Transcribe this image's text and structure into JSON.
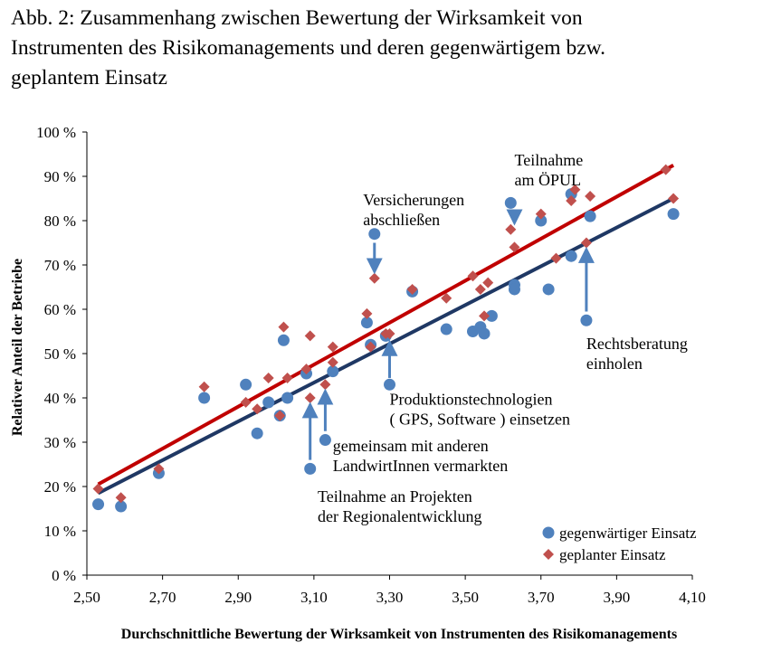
{
  "title_lines": [
    "Abb. 2: Zusammenhang zwischen Bewertung der Wirksamkeit von",
    "Instrumenten des Risikomanagements und deren gegenwärtigem bzw.",
    "geplantem Einsatz"
  ],
  "colors": {
    "current": "#4f81bd",
    "planned": "#c0504d",
    "current_trend": "#1f3864",
    "planned_trend": "#c00000",
    "arrow": "#4f81bd",
    "axis": "#000000"
  },
  "chart_data": {
    "type": "scatter",
    "title": "Abb. 2: Zusammenhang zwischen Bewertung der Wirksamkeit von Instrumenten des Risikomanagements und deren gegenwärtigem bzw. geplantem Einsatz",
    "xlabel": "Durchschnittliche Bewertung der Wirksamkeit von Instrumenten des Risikomanagements",
    "ylabel": "Relativer Anteil der Betriebe",
    "xlim": [
      2.5,
      4.1
    ],
    "ylim": [
      0,
      100
    ],
    "x_ticks": [
      "2,50",
      "2,70",
      "2,90",
      "3,10",
      "3,30",
      "3,50",
      "3,70",
      "3,90",
      "4,10"
    ],
    "y_ticks": [
      "0 %",
      "10 %",
      "20 %",
      "30 %",
      "40 %",
      "50 %",
      "60 %",
      "70 %",
      "80 %",
      "90 %",
      "100 %"
    ],
    "grid": false,
    "legend_position": "bottom-right",
    "series": [
      {
        "name": "gegenwärtiger Einsatz",
        "marker": "circle",
        "points": [
          [
            2.53,
            16
          ],
          [
            2.59,
            15.5
          ],
          [
            2.69,
            23
          ],
          [
            2.81,
            40
          ],
          [
            2.92,
            43
          ],
          [
            2.95,
            32
          ],
          [
            2.98,
            39
          ],
          [
            3.01,
            36
          ],
          [
            3.02,
            53
          ],
          [
            3.03,
            40
          ],
          [
            3.08,
            45.5
          ],
          [
            3.09,
            24
          ],
          [
            3.13,
            30.5
          ],
          [
            3.15,
            46
          ],
          [
            3.24,
            57
          ],
          [
            3.25,
            52
          ],
          [
            3.29,
            54
          ],
          [
            3.3,
            43
          ],
          [
            3.26,
            77
          ],
          [
            3.36,
            64
          ],
          [
            3.45,
            55.5
          ],
          [
            3.52,
            55
          ],
          [
            3.54,
            56
          ],
          [
            3.55,
            54.5
          ],
          [
            3.57,
            58.5
          ],
          [
            3.62,
            84
          ],
          [
            3.63,
            65.5
          ],
          [
            3.63,
            64.5
          ],
          [
            3.7,
            80
          ],
          [
            3.72,
            64.5
          ],
          [
            3.78,
            72
          ],
          [
            3.78,
            86
          ],
          [
            3.83,
            81
          ],
          [
            3.82,
            57.5
          ],
          [
            4.05,
            81.5
          ]
        ]
      },
      {
        "name": "geplanter Einsatz",
        "marker": "diamond",
        "points": [
          [
            2.53,
            19.5
          ],
          [
            2.59,
            17.5
          ],
          [
            2.69,
            24
          ],
          [
            2.81,
            42.5
          ],
          [
            2.92,
            39
          ],
          [
            2.95,
            37.5
          ],
          [
            2.98,
            44.5
          ],
          [
            3.01,
            36
          ],
          [
            3.02,
            56
          ],
          [
            3.03,
            44.5
          ],
          [
            3.08,
            46.5
          ],
          [
            3.09,
            54
          ],
          [
            3.09,
            40
          ],
          [
            3.13,
            43
          ],
          [
            3.15,
            48
          ],
          [
            3.15,
            51.5
          ],
          [
            3.24,
            59
          ],
          [
            3.25,
            51.5
          ],
          [
            3.26,
            67
          ],
          [
            3.29,
            54.5
          ],
          [
            3.3,
            54.5
          ],
          [
            3.36,
            64.5
          ],
          [
            3.45,
            62.5
          ],
          [
            3.52,
            67.5
          ],
          [
            3.54,
            64.5
          ],
          [
            3.56,
            66
          ],
          [
            3.55,
            58.5
          ],
          [
            3.62,
            78
          ],
          [
            3.63,
            74
          ],
          [
            3.7,
            81.5
          ],
          [
            3.74,
            71.5
          ],
          [
            3.78,
            84.5
          ],
          [
            3.79,
            87
          ],
          [
            3.82,
            75
          ],
          [
            3.83,
            85.5
          ],
          [
            4.03,
            91.5
          ],
          [
            4.05,
            85
          ]
        ]
      }
    ],
    "trendlines": [
      {
        "series": "gegenwärtiger Einsatz",
        "x": [
          2.53,
          4.05
        ],
        "y": [
          18.5,
          85
        ]
      },
      {
        "series": "geplanter Einsatz",
        "x": [
          2.53,
          4.05
        ],
        "y": [
          20.5,
          92.5
        ]
      }
    ],
    "annotations": [
      {
        "lines": [
          "Teilnahme",
          "am ÖPUL"
        ],
        "anchor": "start",
        "tx": 3.63,
        "ty": 92.5,
        "arrow": [
          [
            3.63,
            82
          ],
          [
            3.63,
            79.5
          ]
        ]
      },
      {
        "lines": [
          "Versicherungen",
          "abschließen"
        ],
        "anchor": "start",
        "tx": 3.23,
        "ty": 83.5,
        "arrow": [
          [
            3.26,
            75
          ],
          [
            3.26,
            68.5
          ]
        ]
      },
      {
        "lines": [
          "Rechtsberatung",
          "einholen"
        ],
        "anchor": "start",
        "tx": 3.82,
        "ty": 51,
        "arrow": [
          [
            3.82,
            59.5
          ],
          [
            3.82,
            73.5
          ]
        ]
      },
      {
        "lines": [
          "Produktionstechnologien",
          "( GPS, Software ) einsetzen"
        ],
        "anchor": "start",
        "tx": 3.3,
        "ty": 38.5,
        "arrow": [
          [
            3.3,
            44.5
          ],
          [
            3.3,
            52.5
          ]
        ]
      },
      {
        "lines": [
          "gemeinsam mit anderen",
          "LandwirtInnen vermarkten"
        ],
        "anchor": "start",
        "tx": 3.15,
        "ty": 28,
        "arrow": [
          [
            3.13,
            32.5
          ],
          [
            3.13,
            41.5
          ]
        ]
      },
      {
        "lines": [
          "Teilnahme an Projekten",
          "der Regionalentwicklung"
        ],
        "anchor": "start",
        "tx": 3.11,
        "ty": 16.5,
        "arrow": [
          [
            3.09,
            26
          ],
          [
            3.09,
            38.5
          ]
        ]
      }
    ]
  }
}
